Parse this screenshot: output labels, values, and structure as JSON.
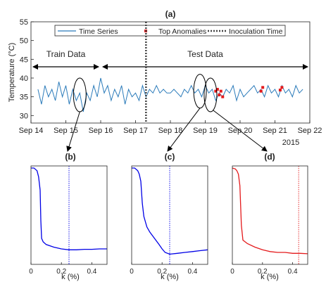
{
  "chart_data": [
    {
      "id": "a",
      "type": "line",
      "title": "(a)",
      "ylabel": "Temperature (°C)",
      "ylim": [
        28,
        55
      ],
      "yticks": [
        30,
        35,
        40,
        45,
        50,
        55
      ],
      "xlim": [
        14,
        22
      ],
      "xticks": [
        {
          "x": 14,
          "label": "Sep 14"
        },
        {
          "x": 15,
          "label": "Sep 15"
        },
        {
          "x": 16,
          "label": "Sep 16"
        },
        {
          "x": 17,
          "label": "Sep 17"
        },
        {
          "x": 18,
          "label": "Sep 18"
        },
        {
          "x": 19,
          "label": "Sep 19"
        },
        {
          "x": 20,
          "label": "Sep 20"
        },
        {
          "x": 21,
          "label": "Sep 21"
        },
        {
          "x": 22,
          "label": "Sep 22"
        }
      ],
      "year_label": "2015",
      "legend": {
        "placement": "top",
        "items": [
          {
            "label": "Time Series",
            "style": "line",
            "color": "#2b7bba"
          },
          {
            "label": "Top Anomalies",
            "style": "marker",
            "color": "#e41a1c"
          },
          {
            "label": "Inoculation Time",
            "style": "dotted",
            "color": "#444444"
          }
        ]
      },
      "inoculation_x": 17.3,
      "annotations": [
        {
          "text": "Train Data",
          "x_from": 14.0,
          "x_to": 16.0,
          "y": 43
        },
        {
          "text": "Test Data",
          "x_from": 16.0,
          "x_to": 22.0,
          "y": 43
        }
      ],
      "series": [
        {
          "name": "Time Series",
          "color": "#2b7bba",
          "x": [
            14.2,
            14.3,
            14.4,
            14.5,
            14.6,
            14.7,
            14.8,
            14.9,
            15.0,
            15.1,
            15.2,
            15.3,
            15.4,
            15.5,
            15.6,
            15.7,
            15.8,
            15.9,
            16.0,
            16.1,
            16.2,
            16.3,
            16.4,
            16.5,
            16.6,
            16.7,
            16.8,
            16.9,
            17.0,
            17.1,
            17.2,
            17.3,
            17.4,
            17.5,
            17.6,
            17.7,
            17.8,
            17.9,
            18.0,
            18.1,
            18.2,
            18.3,
            18.4,
            18.5,
            18.6,
            18.7,
            18.8,
            18.9,
            19.0,
            19.1,
            19.2,
            19.3,
            19.4,
            19.5,
            19.6,
            19.7,
            19.8,
            19.9,
            20.0,
            20.1,
            20.2,
            20.3,
            20.4,
            20.5,
            20.6,
            20.7,
            20.8,
            20.9,
            21.0,
            21.1,
            21.2,
            21.3,
            21.4,
            21.5,
            21.6,
            21.7,
            21.8
          ],
          "y": [
            37,
            33,
            38,
            35,
            37,
            34,
            39,
            35,
            38,
            33,
            37,
            34,
            36,
            31,
            36,
            34,
            38,
            35,
            40,
            36,
            38,
            34,
            37,
            35,
            38,
            33,
            37,
            35,
            36,
            34,
            38,
            35,
            37,
            36,
            38,
            36,
            37,
            36,
            36,
            37,
            36,
            35,
            37,
            36,
            38,
            36,
            37,
            35,
            38,
            36,
            37,
            34,
            36,
            35,
            37,
            36,
            38,
            34,
            37,
            35,
            36,
            37,
            38,
            36,
            37,
            35,
            38,
            36,
            37,
            35,
            38,
            36,
            37,
            35,
            38,
            36,
            37
          ]
        },
        {
          "name": "Top Anomalies",
          "color": "#e41a1c",
          "x": [
            19.3,
            19.35,
            19.4,
            19.45,
            19.5,
            20.6,
            20.65,
            21.15,
            21.2
          ],
          "y": [
            36.5,
            37,
            35.5,
            36.5,
            35,
            36.5,
            37.5,
            36.8,
            37.5
          ]
        }
      ],
      "ellipses": [
        {
          "cx": 15.4,
          "cy": 35.5
        },
        {
          "cx": 18.85,
          "cy": 36.5
        },
        {
          "cx": 19.15,
          "cy": 35.5
        }
      ]
    },
    {
      "id": "b",
      "type": "line",
      "title": "(b)",
      "xlabel": "k (%)",
      "xlim": [
        0,
        0.5
      ],
      "xticks": [
        0,
        0.2,
        0.4
      ],
      "marker_x": 0.25,
      "color": "#0000e6",
      "x": [
        0,
        0.02,
        0.04,
        0.05,
        0.06,
        0.065,
        0.07,
        0.08,
        0.1,
        0.15,
        0.2,
        0.25,
        0.3,
        0.35,
        0.4,
        0.45,
        0.5
      ],
      "y": [
        1.0,
        1.0,
        0.97,
        0.9,
        0.75,
        0.4,
        0.2,
        0.16,
        0.13,
        0.1,
        0.08,
        0.07,
        0.07,
        0.075,
        0.075,
        0.08,
        0.08
      ]
    },
    {
      "id": "c",
      "type": "line",
      "title": "(c)",
      "xlabel": "k (%)",
      "xlim": [
        0,
        0.5
      ],
      "xticks": [
        0,
        0.2,
        0.4
      ],
      "marker_x": 0.25,
      "color": "#0000e6",
      "x": [
        0,
        0.02,
        0.04,
        0.05,
        0.06,
        0.07,
        0.08,
        0.1,
        0.12,
        0.15,
        0.18,
        0.2,
        0.22,
        0.25,
        0.3,
        0.35,
        0.4,
        0.45,
        0.5
      ],
      "y": [
        1.0,
        1.0,
        0.97,
        0.93,
        0.85,
        0.6,
        0.45,
        0.33,
        0.27,
        0.2,
        0.13,
        0.08,
        0.04,
        0.02,
        0.03,
        0.04,
        0.05,
        0.06,
        0.07
      ]
    },
    {
      "id": "d",
      "type": "line",
      "title": "(d)",
      "xlabel": "k (%)",
      "xlim": [
        0,
        0.5
      ],
      "xticks": [
        0,
        0.2,
        0.4
      ],
      "marker_x": 0.44,
      "color": "#e41a1c",
      "x": [
        0,
        0.02,
        0.03,
        0.04,
        0.05,
        0.06,
        0.07,
        0.1,
        0.15,
        0.2,
        0.25,
        0.3,
        0.35,
        0.4,
        0.45,
        0.5
      ],
      "y": [
        1.0,
        0.99,
        0.97,
        0.93,
        0.8,
        0.35,
        0.18,
        0.14,
        0.1,
        0.07,
        0.05,
        0.04,
        0.04,
        0.03,
        0.03,
        0.025
      ]
    }
  ]
}
